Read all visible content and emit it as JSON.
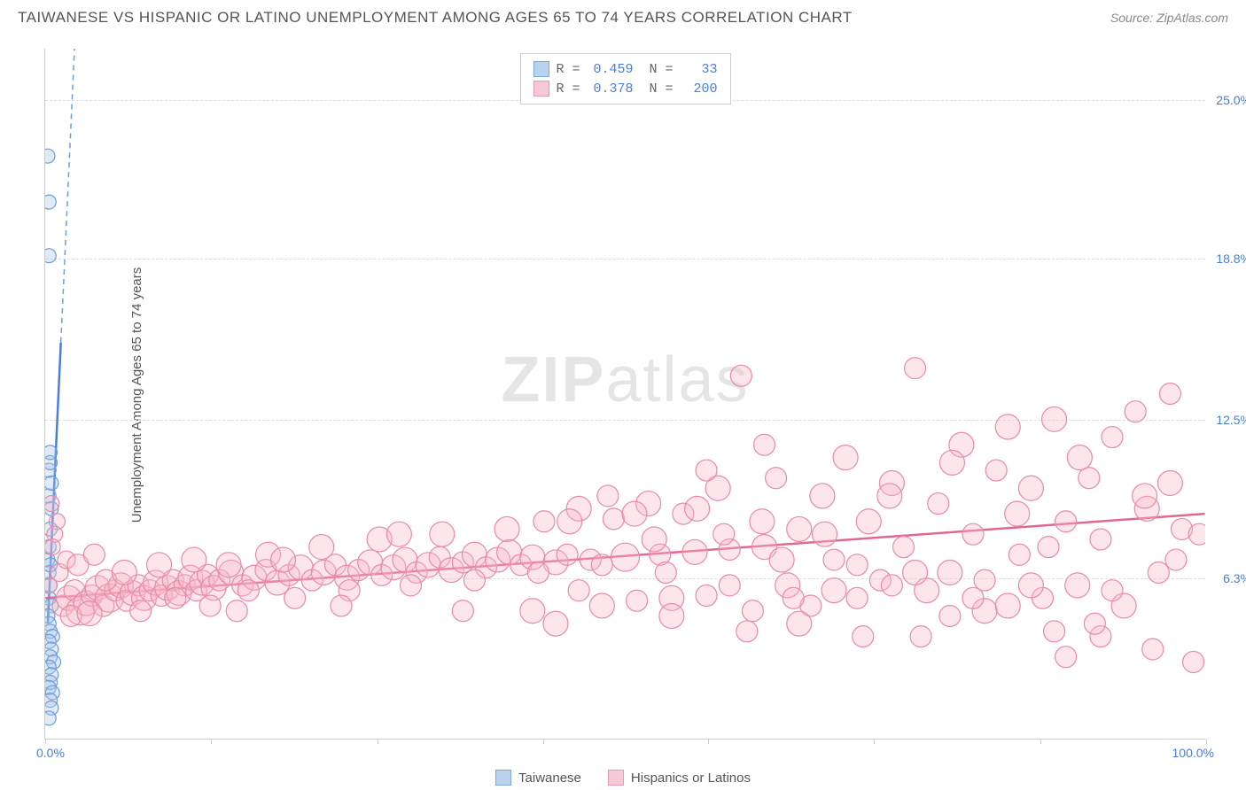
{
  "title": "TAIWANESE VS HISPANIC OR LATINO UNEMPLOYMENT AMONG AGES 65 TO 74 YEARS CORRELATION CHART",
  "source": "Source: ZipAtlas.com",
  "y_axis_label": "Unemployment Among Ages 65 to 74 years",
  "watermark_bold": "ZIP",
  "watermark_light": "atlas",
  "chart": {
    "type": "scatter",
    "xlim": [
      0,
      100
    ],
    "ylim": [
      0,
      27
    ],
    "xticks": [
      0,
      14.3,
      28.6,
      42.9,
      57.1,
      71.4,
      85.7,
      100
    ],
    "yticks": [
      6.3,
      12.5,
      18.8,
      25.0
    ],
    "ytick_labels": [
      "6.3%",
      "12.5%",
      "18.8%",
      "25.0%"
    ],
    "x_left_label": "0.0%",
    "x_right_label": "100.0%",
    "background_color": "#ffffff",
    "grid_color": "#dddddd",
    "axis_color": "#cccccc",
    "tick_label_color": "#4a7fd8",
    "marker_radius_range": [
      7,
      16
    ],
    "marker_opacity": 0.35,
    "series": [
      {
        "name": "Taiwanese",
        "color_fill": "#a8c4e8",
        "color_stroke": "#6a9fd8",
        "swatch_fill": "#bcd1ec",
        "swatch_stroke": "#7aa8dd",
        "correlation": {
          "R": "0.459",
          "N": "33"
        },
        "trend": {
          "x1": 0.2,
          "y1": 4.5,
          "x2": 2.5,
          "y2": 27,
          "solid_until_y": 15.5
        },
        "points": [
          [
            0.2,
            22.8,
            8
          ],
          [
            0.3,
            21.0,
            8
          ],
          [
            0.3,
            18.9,
            8
          ],
          [
            0.3,
            10.5,
            8
          ],
          [
            0.4,
            10.8,
            8
          ],
          [
            0.3,
            9.5,
            8
          ],
          [
            0.5,
            9.0,
            8
          ],
          [
            0.4,
            8.2,
            8
          ],
          [
            0.2,
            7.0,
            8
          ],
          [
            0.3,
            6.5,
            8
          ],
          [
            0.4,
            6.0,
            8
          ],
          [
            0.3,
            5.5,
            8
          ],
          [
            0.5,
            5.2,
            8
          ],
          [
            0.2,
            4.8,
            8
          ],
          [
            0.3,
            4.5,
            8
          ],
          [
            0.4,
            4.2,
            8
          ],
          [
            0.6,
            4.0,
            8
          ],
          [
            0.3,
            3.8,
            8
          ],
          [
            0.5,
            3.5,
            8
          ],
          [
            0.4,
            3.2,
            8
          ],
          [
            0.7,
            3.0,
            8
          ],
          [
            0.3,
            2.8,
            8
          ],
          [
            0.5,
            2.5,
            8
          ],
          [
            0.4,
            2.2,
            8
          ],
          [
            0.3,
            2.0,
            8
          ],
          [
            0.6,
            1.8,
            8
          ],
          [
            0.4,
            1.5,
            8
          ],
          [
            0.5,
            1.2,
            8
          ],
          [
            0.3,
            0.8,
            8
          ],
          [
            0.4,
            11.2,
            8
          ],
          [
            0.5,
            10.0,
            8
          ],
          [
            0.3,
            7.5,
            8
          ],
          [
            0.4,
            6.8,
            8
          ]
        ]
      },
      {
        "name": "Hispanics or Latinos",
        "color_fill": "#f5b8c8",
        "color_stroke": "#e88ba5",
        "swatch_fill": "#f7c8d5",
        "swatch_stroke": "#e799b0",
        "correlation": {
          "R": "0.378",
          "N": "200"
        },
        "trend": {
          "x1": 0,
          "y1": 5.5,
          "x2": 100,
          "y2": 8.8
        },
        "points": [
          [
            0.5,
            9.2,
            9
          ],
          [
            1.0,
            8.5,
            9
          ],
          [
            1.5,
            5.2,
            12
          ],
          [
            2.0,
            5.5,
            14
          ],
          [
            2.5,
            5.8,
            12
          ],
          [
            3.0,
            5.0,
            16
          ],
          [
            3.5,
            5.3,
            14
          ],
          [
            4.0,
            5.6,
            12
          ],
          [
            4.5,
            5.9,
            14
          ],
          [
            5.0,
            5.2,
            12
          ],
          [
            5.5,
            5.5,
            16
          ],
          [
            6.0,
            5.8,
            12
          ],
          [
            6.5,
            6.0,
            14
          ],
          [
            7.0,
            5.4,
            12
          ],
          [
            7.5,
            5.7,
            14
          ],
          [
            8.0,
            6.0,
            12
          ],
          [
            8.5,
            5.5,
            14
          ],
          [
            9.0,
            5.8,
            12
          ],
          [
            9.5,
            6.1,
            14
          ],
          [
            10.0,
            5.6,
            12
          ],
          [
            10.5,
            5.9,
            14
          ],
          [
            11.0,
            6.2,
            12
          ],
          [
            11.5,
            5.7,
            14
          ],
          [
            12.0,
            6.0,
            12
          ],
          [
            12.5,
            6.3,
            14
          ],
          [
            13.0,
            5.8,
            12
          ],
          [
            13.5,
            6.1,
            14
          ],
          [
            14.0,
            6.4,
            12
          ],
          [
            14.5,
            5.9,
            14
          ],
          [
            15.0,
            6.2,
            12
          ],
          [
            16.0,
            6.5,
            14
          ],
          [
            17.0,
            6.0,
            12
          ],
          [
            18.0,
            6.3,
            14
          ],
          [
            19.0,
            6.6,
            12
          ],
          [
            20.0,
            6.1,
            14
          ],
          [
            21.0,
            6.4,
            12
          ],
          [
            22.0,
            6.7,
            14
          ],
          [
            23.0,
            6.2,
            12
          ],
          [
            24.0,
            6.5,
            14
          ],
          [
            25.0,
            6.8,
            12
          ],
          [
            26.0,
            6.3,
            14
          ],
          [
            27.0,
            6.6,
            12
          ],
          [
            28.0,
            6.9,
            14
          ],
          [
            29.0,
            6.4,
            12
          ],
          [
            30.0,
            6.7,
            14
          ],
          [
            31.0,
            7.0,
            14
          ],
          [
            32.0,
            6.5,
            12
          ],
          [
            33.0,
            6.8,
            14
          ],
          [
            34.0,
            7.1,
            12
          ],
          [
            35.0,
            6.6,
            14
          ],
          [
            36.0,
            6.9,
            12
          ],
          [
            37.0,
            7.2,
            14
          ],
          [
            38.0,
            6.7,
            12
          ],
          [
            39.0,
            7.0,
            14
          ],
          [
            40.0,
            7.3,
            14
          ],
          [
            41.0,
            6.8,
            12
          ],
          [
            42.0,
            7.1,
            14
          ],
          [
            43.0,
            8.5,
            12
          ],
          [
            44.0,
            6.9,
            14
          ],
          [
            45.0,
            7.2,
            12
          ],
          [
            46.0,
            9.0,
            14
          ],
          [
            47.0,
            7.0,
            12
          ],
          [
            48.0,
            5.2,
            14
          ],
          [
            49.0,
            8.6,
            12
          ],
          [
            50.0,
            7.1,
            16
          ],
          [
            51.0,
            5.4,
            12
          ],
          [
            52.0,
            9.2,
            14
          ],
          [
            53.0,
            7.2,
            12
          ],
          [
            54.0,
            5.5,
            14
          ],
          [
            55.0,
            8.8,
            12
          ],
          [
            56.0,
            7.3,
            14
          ],
          [
            57.0,
            5.6,
            12
          ],
          [
            58.0,
            9.8,
            14
          ],
          [
            59.0,
            7.4,
            12
          ],
          [
            60.0,
            14.2,
            12
          ],
          [
            61.0,
            5.0,
            12
          ],
          [
            62.0,
            7.5,
            14
          ],
          [
            63.0,
            10.2,
            12
          ],
          [
            64.0,
            6.0,
            14
          ],
          [
            65.0,
            8.2,
            14
          ],
          [
            66.0,
            5.2,
            12
          ],
          [
            67.0,
            9.5,
            14
          ],
          [
            68.0,
            7.0,
            12
          ],
          [
            69.0,
            11.0,
            14
          ],
          [
            70.0,
            5.5,
            12
          ],
          [
            71.0,
            8.5,
            14
          ],
          [
            72.0,
            6.2,
            12
          ],
          [
            73.0,
            10.0,
            14
          ],
          [
            74.0,
            7.5,
            12
          ],
          [
            75.0,
            14.5,
            12
          ],
          [
            76.0,
            5.8,
            14
          ],
          [
            77.0,
            9.2,
            12
          ],
          [
            78.0,
            6.5,
            14
          ],
          [
            79.0,
            11.5,
            14
          ],
          [
            80.0,
            8.0,
            12
          ],
          [
            81.0,
            5.0,
            14
          ],
          [
            82.0,
            10.5,
            12
          ],
          [
            83.0,
            12.2,
            14
          ],
          [
            84.0,
            7.2,
            12
          ],
          [
            85.0,
            9.8,
            14
          ],
          [
            86.0,
            5.5,
            12
          ],
          [
            87.0,
            12.5,
            14
          ],
          [
            88.0,
            8.5,
            12
          ],
          [
            89.0,
            6.0,
            14
          ],
          [
            90.0,
            10.2,
            12
          ],
          [
            91.0,
            7.8,
            12
          ],
          [
            92.0,
            11.8,
            12
          ],
          [
            93.0,
            5.2,
            14
          ],
          [
            94.0,
            12.8,
            12
          ],
          [
            95.0,
            9.0,
            14
          ],
          [
            96.0,
            6.5,
            12
          ],
          [
            97.0,
            10.0,
            14
          ],
          [
            98.0,
            8.2,
            12
          ],
          [
            99.0,
            3.0,
            12
          ],
          [
            95.5,
            3.5,
            12
          ],
          [
            91.0,
            4.0,
            12
          ],
          [
            88.0,
            3.2,
            12
          ],
          [
            99.5,
            8.0,
            12
          ],
          [
            97.0,
            13.5,
            12
          ],
          [
            0.8,
            8.0,
            9
          ],
          [
            2.2,
            4.8,
            12
          ],
          [
            3.8,
            4.9,
            14
          ],
          [
            5.2,
            6.2,
            12
          ],
          [
            6.8,
            6.5,
            14
          ],
          [
            8.2,
            5.0,
            12
          ],
          [
            9.8,
            6.8,
            14
          ],
          [
            11.2,
            5.5,
            12
          ],
          [
            12.8,
            7.0,
            14
          ],
          [
            14.2,
            5.2,
            12
          ],
          [
            15.8,
            6.8,
            14
          ],
          [
            17.5,
            5.8,
            12
          ],
          [
            19.2,
            7.2,
            14
          ],
          [
            21.5,
            5.5,
            12
          ],
          [
            23.8,
            7.5,
            14
          ],
          [
            26.2,
            5.8,
            12
          ],
          [
            28.8,
            7.8,
            14
          ],
          [
            31.5,
            6.0,
            12
          ],
          [
            34.2,
            8.0,
            14
          ],
          [
            37.0,
            6.2,
            12
          ],
          [
            39.8,
            8.2,
            14
          ],
          [
            42.5,
            6.5,
            12
          ],
          [
            45.2,
            8.5,
            14
          ],
          [
            48.0,
            6.8,
            12
          ],
          [
            50.8,
            8.8,
            14
          ],
          [
            53.5,
            6.5,
            12
          ],
          [
            56.2,
            9.0,
            14
          ],
          [
            59.0,
            6.0,
            12
          ],
          [
            61.8,
            8.5,
            14
          ],
          [
            64.5,
            5.5,
            12
          ],
          [
            67.2,
            8.0,
            14
          ],
          [
            70.0,
            6.8,
            12
          ],
          [
            72.8,
            9.5,
            14
          ],
          [
            75.5,
            4.0,
            12
          ],
          [
            78.2,
            10.8,
            14
          ],
          [
            81.0,
            6.2,
            12
          ],
          [
            83.8,
            8.8,
            14
          ],
          [
            86.5,
            7.5,
            12
          ],
          [
            89.2,
            11.0,
            14
          ],
          [
            92.0,
            5.8,
            12
          ],
          [
            94.8,
            9.5,
            14
          ],
          [
            97.5,
            7.0,
            12
          ],
          [
            60.5,
            4.2,
            12
          ],
          [
            65.0,
            4.5,
            14
          ],
          [
            70.5,
            4.0,
            12
          ],
          [
            75.0,
            6.5,
            14
          ],
          [
            80.0,
            5.5,
            12
          ],
          [
            85.0,
            6.0,
            14
          ],
          [
            90.5,
            4.5,
            12
          ],
          [
            78.0,
            4.8,
            12
          ],
          [
            83.0,
            5.2,
            14
          ],
          [
            87.0,
            4.2,
            12
          ],
          [
            62.0,
            11.5,
            12
          ],
          [
            68.0,
            5.8,
            14
          ],
          [
            73.0,
            6.0,
            12
          ],
          [
            42.0,
            5.0,
            14
          ],
          [
            48.5,
            9.5,
            12
          ],
          [
            54.0,
            4.8,
            14
          ],
          [
            58.5,
            8.0,
            12
          ],
          [
            44.0,
            4.5,
            14
          ],
          [
            36.0,
            5.0,
            12
          ],
          [
            30.5,
            8.0,
            14
          ],
          [
            25.5,
            5.2,
            12
          ],
          [
            20.5,
            7.0,
            14
          ],
          [
            16.5,
            5.0,
            12
          ],
          [
            1.2,
            6.5,
            10
          ],
          [
            1.8,
            7.0,
            10
          ],
          [
            2.8,
            6.8,
            12
          ],
          [
            4.2,
            7.2,
            12
          ],
          [
            0.3,
            6.0,
            9
          ],
          [
            0.6,
            7.5,
            9
          ],
          [
            46.0,
            5.8,
            12
          ],
          [
            52.5,
            7.8,
            14
          ],
          [
            57.0,
            10.5,
            12
          ],
          [
            63.5,
            7.0,
            14
          ]
        ]
      }
    ]
  },
  "legend": {
    "items": [
      {
        "label": "Taiwanese",
        "fill": "#bcd1ec",
        "stroke": "#7aa8dd"
      },
      {
        "label": "Hispanics or Latinos",
        "fill": "#f7c8d5",
        "stroke": "#e799b0"
      }
    ]
  },
  "corr_labels": {
    "R": "R =",
    "N": "N ="
  }
}
